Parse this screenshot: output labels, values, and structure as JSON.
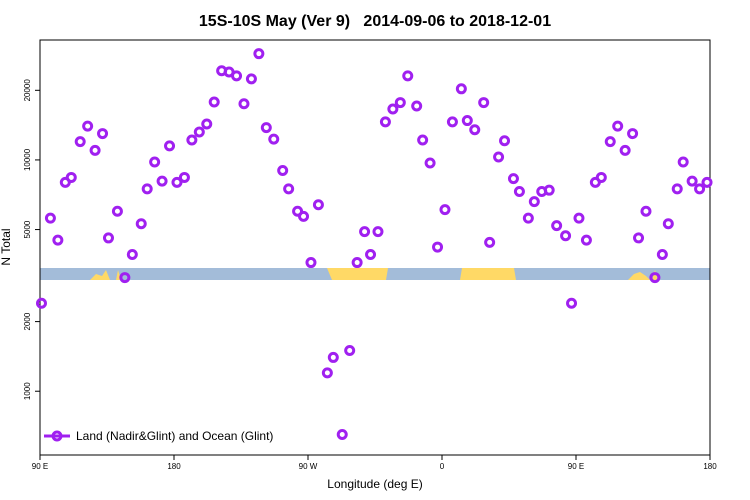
{
  "chart_data": {
    "type": "scatter",
    "title": "15S-10S May (Ver 9)   2014-09-06 to 2018-12-01",
    "x_label": "Longitude (deg E)",
    "y_label": "N Total",
    "xlim": [
      90,
      540
    ],
    "xticks": [
      {
        "value": 90,
        "label": "90 E"
      },
      180,
      {
        "value": 270,
        "label": "90 W"
      },
      {
        "value": 360,
        "label": "0"
      },
      {
        "value": 450,
        "label": "90 E"
      },
      {
        "value": 540,
        "label": "180"
      }
    ],
    "ylim": [
      530,
      33000
    ],
    "log_y": true,
    "yticks": [
      1000,
      2000,
      5000,
      10000,
      20000
    ],
    "legend": "bottom-left",
    "series": [
      {
        "name": "Land (Nadir&Glint) and Ocean (Glint)",
        "color": "#a020f0",
        "x": [
          91,
          97,
          102,
          107,
          111,
          117,
          122,
          127,
          132,
          136,
          142,
          147,
          152,
          158,
          162,
          167,
          172,
          177,
          182,
          187,
          192,
          197,
          202,
          207,
          212,
          217,
          222,
          227,
          232,
          237,
          242,
          247,
          253,
          257,
          263,
          267,
          272,
          277,
          283,
          287,
          293,
          298,
          303,
          308,
          312,
          317,
          322,
          327,
          332,
          337,
          343,
          347,
          352,
          357,
          362,
          367,
          373,
          377,
          382,
          388,
          392,
          398,
          402,
          408,
          412,
          418,
          422,
          427,
          432,
          437,
          443,
          447,
          452,
          457,
          463,
          467,
          473,
          478,
          483,
          488,
          492,
          497,
          503,
          508,
          512,
          518,
          522,
          528,
          533,
          538
        ],
        "values": [
          2400,
          5600,
          4500,
          8000,
          8400,
          12000,
          14000,
          11000,
          13000,
          4600,
          6000,
          3100,
          3900,
          5300,
          7500,
          9800,
          8100,
          11500,
          8000,
          8400,
          12200,
          13200,
          14300,
          17800,
          24300,
          24000,
          23100,
          17500,
          22400,
          28800,
          13800,
          12300,
          9000,
          7500,
          6000,
          5700,
          3600,
          6400,
          1200,
          1400,
          650,
          1500,
          3600,
          4900,
          3900,
          4900,
          14600,
          16600,
          17700,
          23100,
          17100,
          12200,
          9700,
          4200,
          6100,
          14600,
          20300,
          14800,
          13500,
          17700,
          4400,
          10300,
          12100,
          8300,
          7300,
          5600,
          6600,
          7300,
          7400,
          5200,
          4700,
          2400,
          5600,
          4500,
          8000,
          8400,
          12000,
          14000,
          11000,
          13000,
          4600,
          6000,
          3100,
          3900,
          5300,
          7500,
          9800,
          8100,
          7500,
          8000
        ]
      }
    ]
  }
}
